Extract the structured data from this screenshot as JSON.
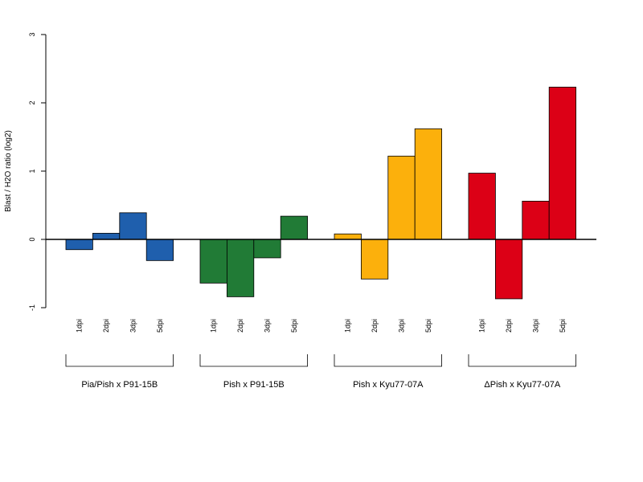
{
  "chart_data": {
    "type": "bar",
    "ylabel": "Blast / H2O ratio (log2)",
    "ylim": [
      -1,
      3
    ],
    "yticks": [
      -1,
      0,
      1,
      2,
      3
    ],
    "zero_line": true,
    "groups": [
      {
        "name": "Pia/Pish x P91-15B",
        "color": "#1f5fad",
        "categories": [
          "1dpi",
          "2dpi",
          "3dpi",
          "5dpi"
        ],
        "values": [
          -0.15,
          0.09,
          0.39,
          -0.31
        ]
      },
      {
        "name": "Pish x P91-15B",
        "color": "#217b36",
        "categories": [
          "1dpi",
          "2dpi",
          "3dpi",
          "5dpi"
        ],
        "values": [
          -0.64,
          -0.84,
          -0.27,
          0.34
        ]
      },
      {
        "name": "Pish x Kyu77-07A",
        "color": "#fcb00c",
        "categories": [
          "1dpi",
          "2dpi",
          "3dpi",
          "5dpi"
        ],
        "values": [
          0.08,
          -0.58,
          1.22,
          1.62
        ]
      },
      {
        "name": "ΔPish x Kyu77-07A",
        "color": "#dc0016",
        "categories": [
          "1dpi",
          "2dpi",
          "3dpi",
          "5dpi"
        ],
        "values": [
          0.97,
          -0.87,
          0.56,
          2.23
        ]
      }
    ]
  }
}
